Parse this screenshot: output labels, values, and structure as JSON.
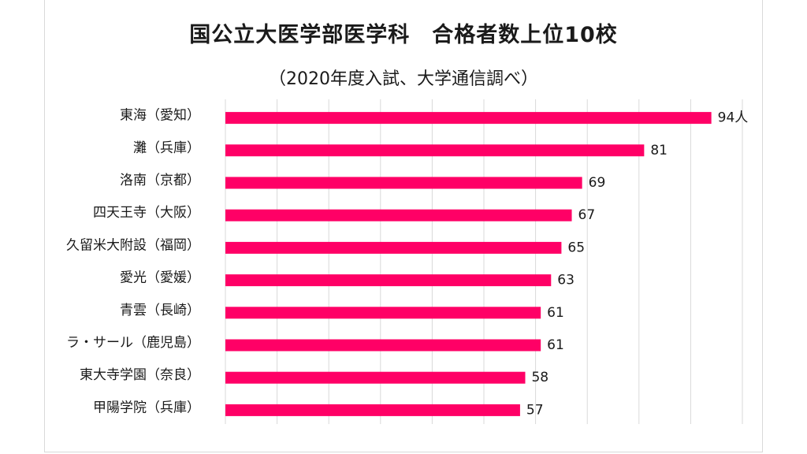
{
  "chart_data": {
    "type": "bar",
    "orientation": "horizontal",
    "title": "国公立大医学部医学科　合格者数上位10校",
    "subtitle": "（2020年度入試、大学通信調べ）",
    "categories": [
      "東海（愛知）",
      "灘（兵庫）",
      "洛南（京都）",
      "四天王寺（大阪）",
      "久留米大附設（福岡）",
      "愛光（愛媛）",
      "青雲（長崎）",
      "ラ・サール（鹿児島）",
      "東大寺学園（奈良）",
      "甲陽学院（兵庫）"
    ],
    "values": [
      94,
      81,
      69,
      67,
      65,
      63,
      61,
      61,
      58,
      57
    ],
    "value_labels": [
      "94人",
      "81",
      "69",
      "67",
      "65",
      "63",
      "61",
      "61",
      "58",
      "57"
    ],
    "xlim": [
      0,
      100
    ],
    "grid": true,
    "bar_color": "#ff0066"
  }
}
